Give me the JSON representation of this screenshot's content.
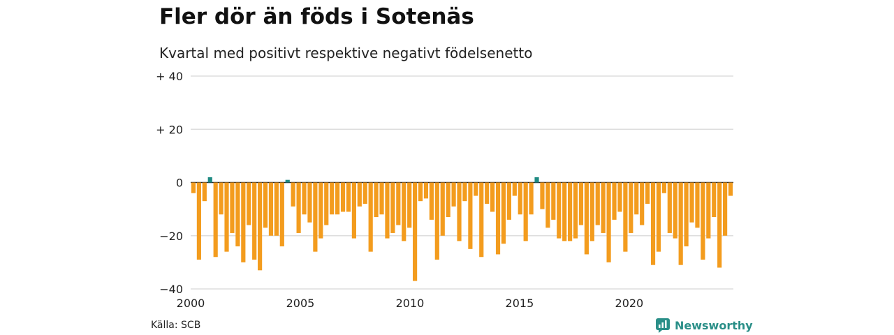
{
  "title": "Fler dör än föds i Sotenäs",
  "subtitle": "Kvartal med positivt respektive negativt födelsenetto",
  "source": "Källa: SCB",
  "brand": {
    "name": "Newsworthy",
    "icon": "newsworthy-logo-icon",
    "color": "#2a8f88"
  },
  "colors": {
    "positive": "#1f8a82",
    "negative": "#f39c1e",
    "grid": "#dddddd",
    "baseline": "#222222"
  },
  "chart_data": {
    "type": "bar",
    "title": "",
    "xlabel": "",
    "ylabel": "",
    "ylim": [
      -40,
      40
    ],
    "grid": true,
    "x_start_year": 2000,
    "x_end_year": 2024.75,
    "yticks": [
      {
        "value": 40,
        "label": "+ 40"
      },
      {
        "value": 20,
        "label": "+ 20"
      },
      {
        "value": 0,
        "label": "0"
      },
      {
        "value": -20,
        "label": "−20"
      },
      {
        "value": -40,
        "label": "−40"
      }
    ],
    "xticks": [
      {
        "value": 2000,
        "label": "2000"
      },
      {
        "value": 2005,
        "label": "2005"
      },
      {
        "value": 2010,
        "label": "2010"
      },
      {
        "value": 2015,
        "label": "2015"
      },
      {
        "value": 2020,
        "label": "2020"
      }
    ],
    "values": [
      -4,
      -29,
      -7,
      2,
      -28,
      -12,
      -26,
      -19,
      -24,
      -30,
      -16,
      -29,
      -33,
      -17,
      -20,
      -20,
      -24,
      1,
      -9,
      -19,
      -12,
      -15,
      -26,
      -21,
      -16,
      -12,
      -12,
      -11,
      -11,
      -21,
      -9,
      -8,
      -26,
      -13,
      -12,
      -21,
      -19,
      -16,
      -22,
      -17,
      -37,
      -7,
      -6,
      -14,
      -29,
      -20,
      -13,
      -9,
      -22,
      -7,
      -25,
      -5,
      -28,
      -8,
      -11,
      -27,
      -23,
      -14,
      -5,
      -12,
      -22,
      -12,
      2,
      -10,
      -17,
      -14,
      -21,
      -22,
      -22,
      -21,
      -16,
      -27,
      -22,
      -16,
      -19,
      -30,
      -14,
      -11,
      -26,
      -19,
      -12,
      -16,
      -8,
      -31,
      -26,
      -4,
      -19,
      -21,
      -31,
      -24,
      -15,
      -17,
      -29,
      -21,
      -13,
      -32,
      -20,
      -5
    ]
  }
}
